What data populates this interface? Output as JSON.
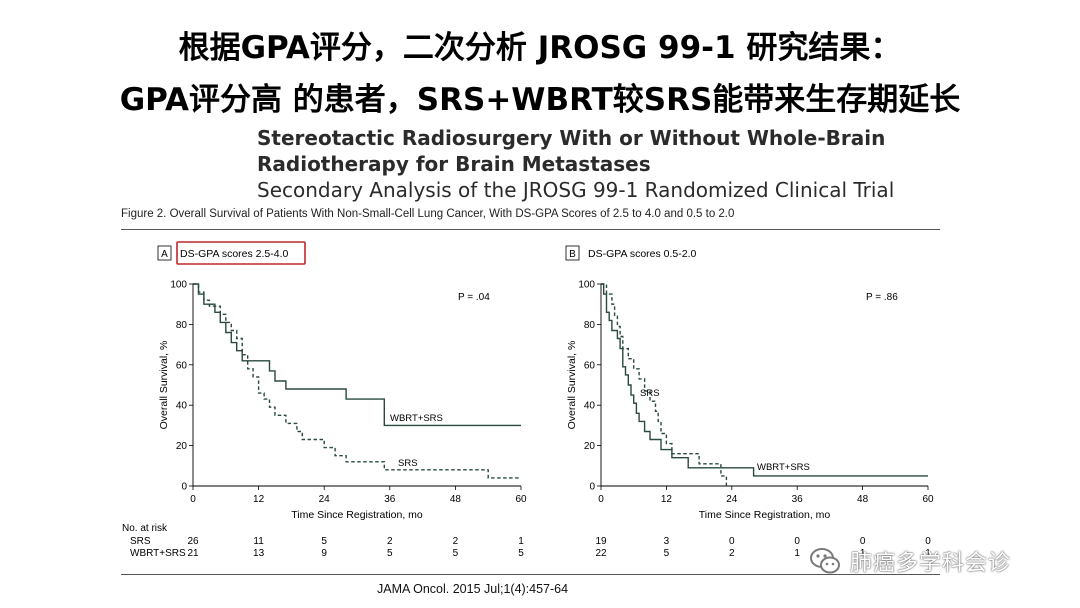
{
  "slide": {
    "title_line1": "根据GPA评分，二次分析 JROSG 99-1 研究结果：",
    "title_line2": "GPA评分高 的患者，SRS+WBRT较SRS能带来生存期延长"
  },
  "article": {
    "title_line1": "Stereotactic Radiosurgery With or Without Whole-Brain",
    "title_line2": "Radiotherapy for Brain Metastases",
    "subtitle": "Secondary Analysis of the JROSG 99-1 Randomized Clinical Trial"
  },
  "figure": {
    "caption": "Figure 2. Overall Survival of Patients With Non-Small-Cell Lung Cancer, With DS-GPA Scores of 2.5 to 4.0 and 0.5 to 2.0",
    "at_risk_header": "No. at risk"
  },
  "citation": "JAMA Oncol. 2015 Jul;1(4):457-64",
  "watermark": {
    "text": "肺癌多学科会诊",
    "icon": "wechat-icon"
  },
  "colors": {
    "srs": "#2a4a3c",
    "wbrt_srs": "#2a4a3c",
    "highlight_box": "#c0282a",
    "text": "#000000"
  },
  "chart_data": [
    {
      "type": "line",
      "panel_letter": "A",
      "panel_label": "DS-GPA scores 2.5-4.0",
      "highlighted": true,
      "xlabel": "Time Since Registration, mo",
      "ylabel": "Overall Survival, %",
      "xlim": [
        0,
        60
      ],
      "ylim": [
        0,
        100
      ],
      "xticks": [
        0,
        12,
        24,
        36,
        48,
        60
      ],
      "yticks": [
        0,
        20,
        40,
        60,
        80,
        100
      ],
      "p_value": "P = .04",
      "series": [
        {
          "name": "WBRT+SRS",
          "style": "solid",
          "steps": [
            [
              0,
              100
            ],
            [
              1,
              95
            ],
            [
              2,
              90
            ],
            [
              4,
              86
            ],
            [
              5,
              81
            ],
            [
              6,
              76
            ],
            [
              7,
              71
            ],
            [
              8,
              67
            ],
            [
              9,
              62
            ],
            [
              14,
              62
            ],
            [
              14,
              57
            ],
            [
              15,
              52
            ],
            [
              17,
              48
            ],
            [
              28,
              48
            ],
            [
              28,
              43
            ],
            [
              33,
              43
            ],
            [
              35,
              38
            ],
            [
              35,
              30
            ],
            [
              60,
              30
            ]
          ]
        },
        {
          "name": "SRS",
          "style": "dashed",
          "steps": [
            [
              0,
              100
            ],
            [
              1,
              96
            ],
            [
              2,
              92
            ],
            [
              3,
              89
            ],
            [
              5,
              85
            ],
            [
              6,
              81
            ],
            [
              7,
              77
            ],
            [
              8,
              73
            ],
            [
              9,
              69
            ],
            [
              9,
              65
            ],
            [
              10,
              62
            ],
            [
              10,
              58
            ],
            [
              11,
              54
            ],
            [
              12,
              50
            ],
            [
              12,
              46
            ],
            [
              13,
              43
            ],
            [
              14,
              39
            ],
            [
              15,
              35
            ],
            [
              17,
              31
            ],
            [
              19,
              27
            ],
            [
              20,
              23
            ],
            [
              24,
              19
            ],
            [
              26,
              15
            ],
            [
              28,
              12
            ],
            [
              35,
              12
            ],
            [
              35,
              8
            ],
            [
              54,
              8
            ],
            [
              54,
              4
            ],
            [
              60,
              4
            ]
          ]
        }
      ],
      "at_risk": {
        "times": [
          0,
          12,
          24,
          36,
          48,
          60
        ],
        "rows": [
          {
            "label": "SRS",
            "values": [
              "26",
              "11",
              "5",
              "2",
              "2",
              "1"
            ]
          },
          {
            "label": "WBRT+SRS",
            "values": [
              "21",
              "13",
              "9",
              "5",
              "5",
              "5"
            ]
          }
        ]
      }
    },
    {
      "type": "line",
      "panel_letter": "B",
      "panel_label": "DS-GPA scores 0.5-2.0",
      "highlighted": false,
      "xlabel": "Time Since Registration, mo",
      "ylabel": "Overall Survival, %",
      "xlim": [
        0,
        60
      ],
      "ylim": [
        0,
        100
      ],
      "xticks": [
        0,
        12,
        24,
        36,
        48,
        60
      ],
      "yticks": [
        0,
        20,
        40,
        60,
        80,
        100
      ],
      "p_value": "P = .86",
      "series": [
        {
          "name": "WBRT+SRS",
          "style": "solid",
          "steps": [
            [
              0,
              100
            ],
            [
              0.5,
              95
            ],
            [
              1,
              86
            ],
            [
              1.5,
              82
            ],
            [
              2,
              77
            ],
            [
              3,
              73
            ],
            [
              3.5,
              68
            ],
            [
              4,
              59
            ],
            [
              4.5,
              55
            ],
            [
              5,
              50
            ],
            [
              5.5,
              45
            ],
            [
              6,
              41
            ],
            [
              6.5,
              36
            ],
            [
              7,
              32
            ],
            [
              8,
              27
            ],
            [
              9,
              23
            ],
            [
              11,
              18
            ],
            [
              13,
              14
            ],
            [
              16,
              9
            ],
            [
              28,
              9
            ],
            [
              28,
              5
            ],
            [
              60,
              5
            ]
          ]
        },
        {
          "name": "SRS",
          "style": "dashed",
          "steps": [
            [
              0,
              100
            ],
            [
              1,
              95
            ],
            [
              2,
              90
            ],
            [
              2.5,
              84
            ],
            [
              3,
              79
            ],
            [
              3.5,
              74
            ],
            [
              4,
              68
            ],
            [
              5,
              63
            ],
            [
              6,
              58
            ],
            [
              7,
              53
            ],
            [
              8,
              47
            ],
            [
              9,
              42
            ],
            [
              10,
              37
            ],
            [
              10.5,
              32
            ],
            [
              11,
              26
            ],
            [
              12,
              21
            ],
            [
              13,
              16
            ],
            [
              17,
              16
            ],
            [
              18,
              11
            ],
            [
              22,
              11
            ],
            [
              22,
              5
            ],
            [
              23,
              5
            ],
            [
              23,
              0
            ]
          ]
        }
      ],
      "at_risk": {
        "times": [
          0,
          12,
          24,
          36,
          48,
          60
        ],
        "rows": [
          {
            "label": "SRS",
            "values": [
              "19",
              "3",
              "0",
              "0",
              "0",
              "0"
            ]
          },
          {
            "label": "WBRT+SRS",
            "values": [
              "22",
              "5",
              "2",
              "1",
              "1",
              "1"
            ]
          }
        ]
      }
    }
  ]
}
